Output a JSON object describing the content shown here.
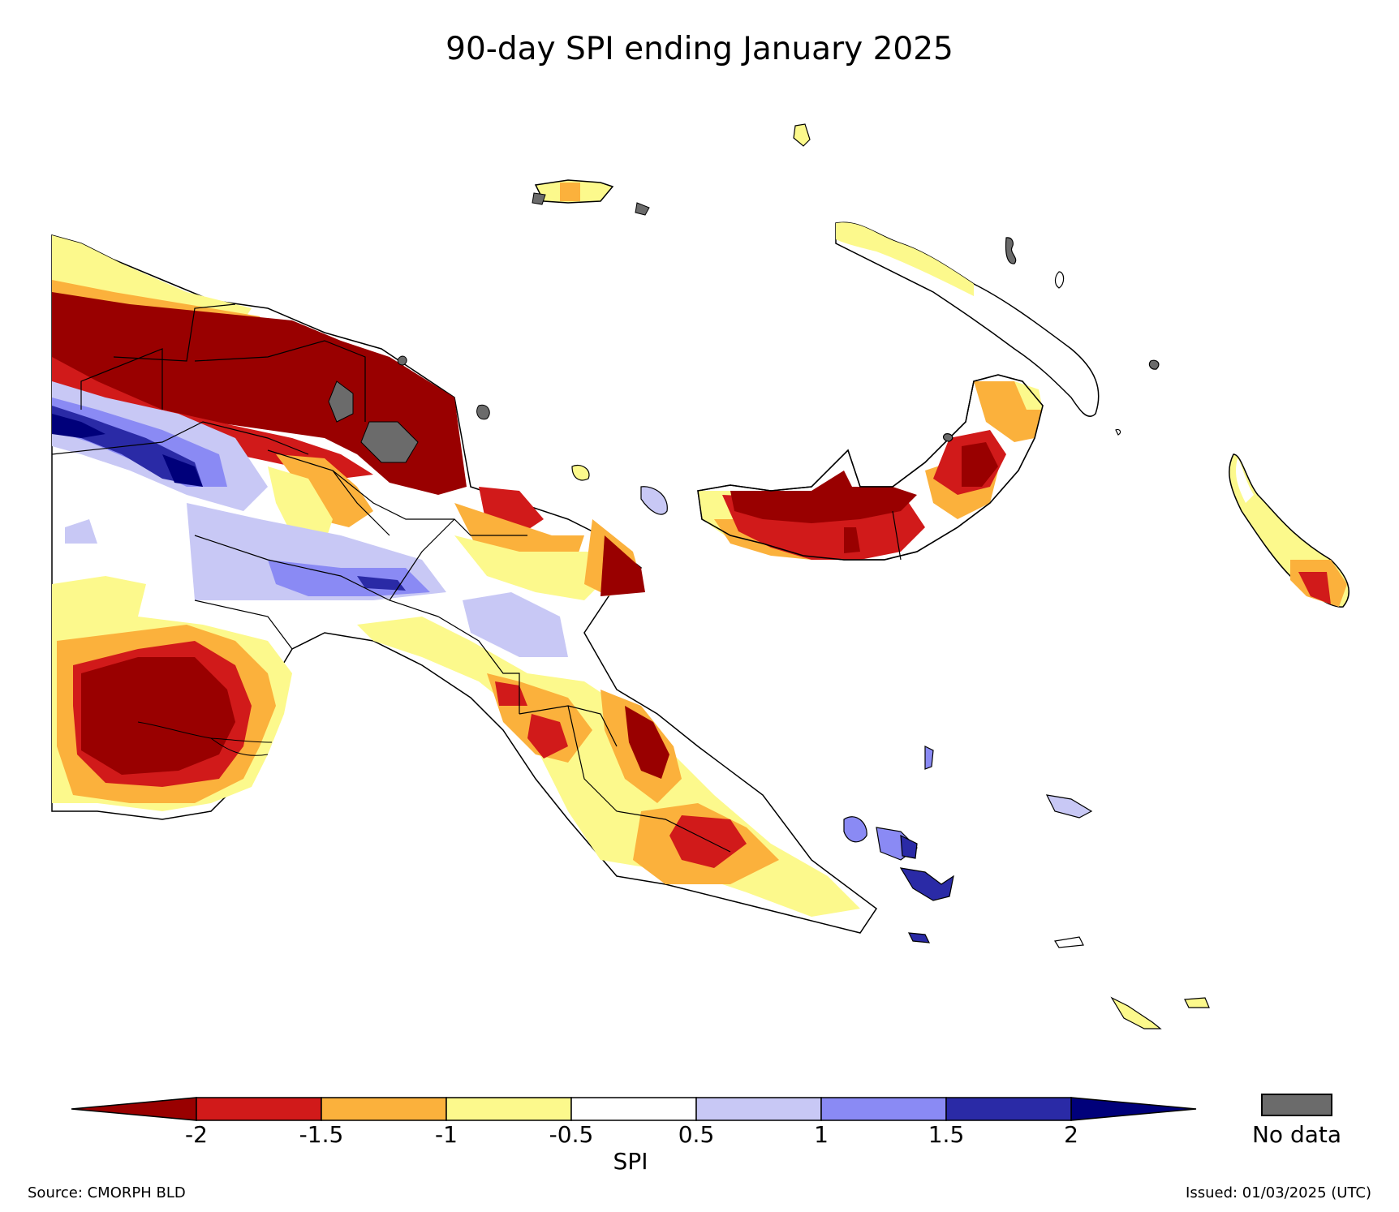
{
  "title": "90-day SPI ending January 2025",
  "legend": {
    "label": "SPI",
    "ticks": [
      "-2",
      "-1.5",
      "-1",
      "-0.5",
      "0.5",
      "1",
      "1.5",
      "2"
    ],
    "categories": [
      {
        "range": "< -2",
        "color": "#990000"
      },
      {
        "range": "-2 to -1.5",
        "color": "#d11a1a"
      },
      {
        "range": "-1.5 to -1",
        "color": "#fbb13c"
      },
      {
        "range": "-1 to -0.5",
        "color": "#fcf98c"
      },
      {
        "range": "-0.5 to 0.5",
        "color": "#ffffff"
      },
      {
        "range": "0.5 to 1",
        "color": "#c8c8f5"
      },
      {
        "range": "1 to 1.5",
        "color": "#8a8af4"
      },
      {
        "range": "1.5 to 2",
        "color": "#2a2aa6"
      },
      {
        "range": "> 2",
        "color": "#00007a"
      }
    ],
    "no_data_label": "No data",
    "no_data_color": "#6b6b6b"
  },
  "footer": {
    "source": "Source: CMORPH BLD",
    "issued": "Issued: 01/03/2025 (UTC)"
  }
}
